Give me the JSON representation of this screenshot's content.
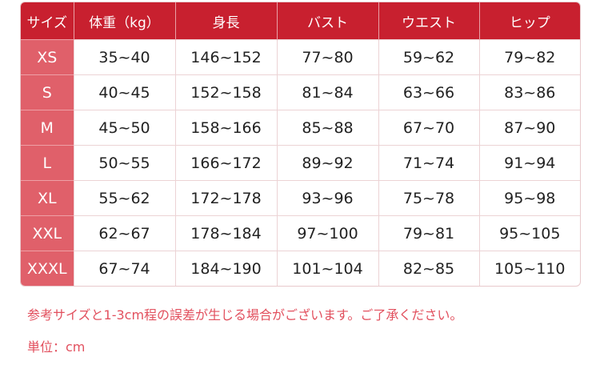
{
  "table": {
    "headers": [
      "サイズ",
      "体重（kg）",
      "身長",
      "バスト",
      "ウエスト",
      "ヒップ"
    ],
    "rows": [
      [
        "XS",
        "35~40",
        "146~152",
        "77~80",
        "59~62",
        "79~82"
      ],
      [
        "S",
        "40~45",
        "152~158",
        "81~84",
        "63~66",
        "83~86"
      ],
      [
        "M",
        "45~50",
        "158~166",
        "85~88",
        "67~70",
        "87~90"
      ],
      [
        "L",
        "50~55",
        "166~172",
        "89~92",
        "71~74",
        "91~94"
      ],
      [
        "XL",
        "55~62",
        "172~178",
        "93~96",
        "75~78",
        "95~98"
      ],
      [
        "XXL",
        "62~67",
        "178~184",
        "97~100",
        "79~81",
        "95~105"
      ],
      [
        "XXXL",
        "67~74",
        "184~190",
        "101~104",
        "82~85",
        "105~110"
      ]
    ]
  },
  "notes": {
    "tolerance": "参考サイズと1-3cm程の誤差が生じる場合がございます。ご了承ください。",
    "unit": "単位：cm"
  },
  "colors": {
    "header": "#c8202f",
    "size_column": "#e0606a",
    "note_text": "#e2505e"
  }
}
